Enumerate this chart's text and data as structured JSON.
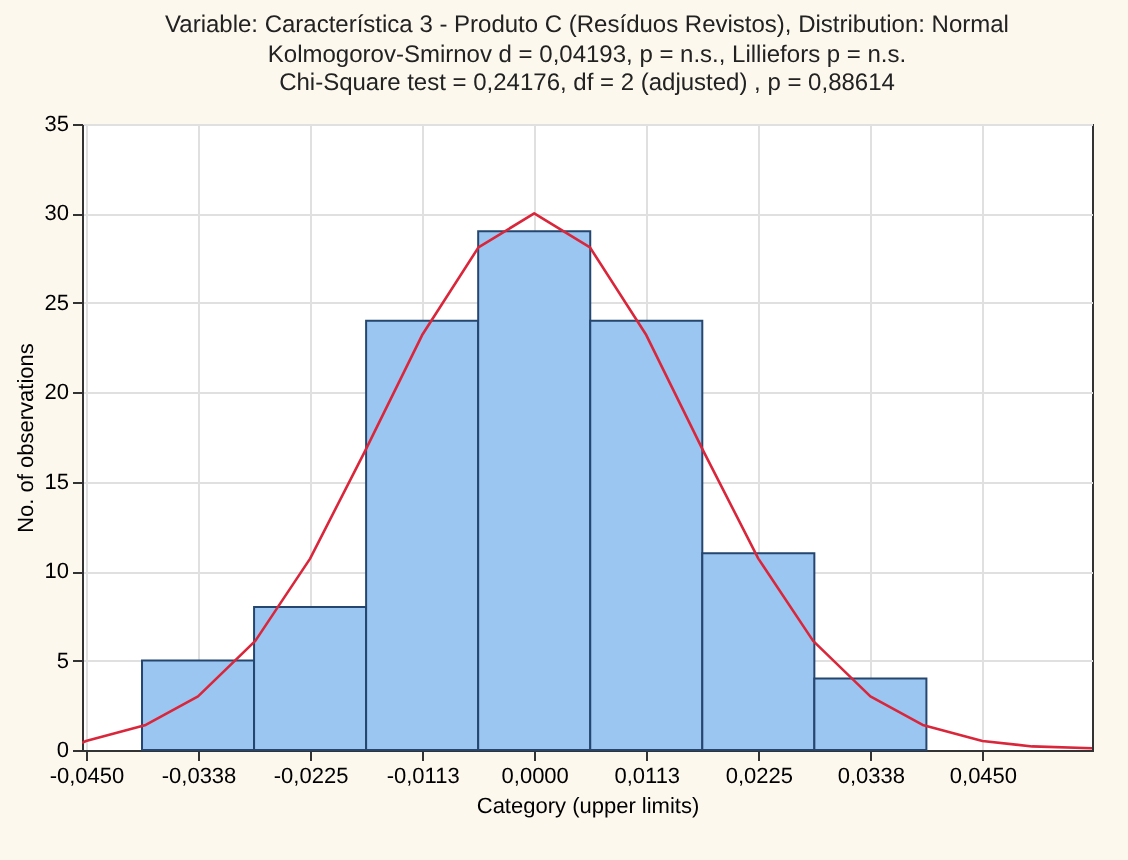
{
  "chart_data": {
    "type": "histogram",
    "title": "Variable: Característica 3 - Produto C (Resíduos Revistos), Distribution: Normal",
    "subtitle": "Kolmogorov-Smirnov d = 0,04193, p = n.s., Lilliefors p = n.s.\nChi-Square test = 0,24176, df = 2 (adjusted) , p = 0,88614",
    "xlabel": "Category (upper limits)",
    "ylabel": "No. of observations",
    "bins": [
      -0.039375,
      -0.028125,
      -0.016875,
      -0.005625,
      0.005625,
      0.016875,
      0.028125,
      0.039375
    ],
    "values": [
      5,
      8,
      24,
      29,
      24,
      11,
      4
    ],
    "color": "#9cc6f2",
    "series": [
      {
        "type": "line",
        "color": "#d9263a",
        "x": [
          -0.0454,
          -0.045,
          -0.039,
          -0.03375,
          -0.028,
          -0.0225,
          -0.017,
          -0.01125,
          -0.0056,
          0,
          0.0056,
          0.01125,
          0.017,
          0.0225,
          0.028,
          0.03375,
          0.039,
          0.045,
          0.05,
          0.056
        ],
        "values": [
          0.4,
          0.5,
          1.4,
          3,
          6.1,
          10.7,
          16.7,
          23.2,
          28.1,
          30,
          28.1,
          23.2,
          16.7,
          10.7,
          6.1,
          3,
          1.4,
          0.5,
          0.2,
          0.1
        ]
      }
    ],
    "xlim": [
      -0.0454,
      0.056
    ],
    "xticks": [
      {
        "value": -0.045,
        "label": "-0,0450"
      },
      {
        "value": -0.03375,
        "label": "-0,0338"
      },
      {
        "value": -0.0225,
        "label": "-0,0225"
      },
      {
        "value": -0.01125,
        "label": "-0,0113"
      },
      {
        "value": 0,
        "label": "0,0000"
      },
      {
        "value": 0.01125,
        "label": "0,0113"
      },
      {
        "value": 0.0225,
        "label": "0,0225"
      },
      {
        "value": 0.03375,
        "label": "0,0338"
      },
      {
        "value": 0.045,
        "label": "0,0450"
      }
    ],
    "ylim": [
      0,
      35
    ],
    "yticks": [
      0,
      5,
      10,
      15,
      20,
      25,
      30,
      35
    ],
    "grid": true
  }
}
